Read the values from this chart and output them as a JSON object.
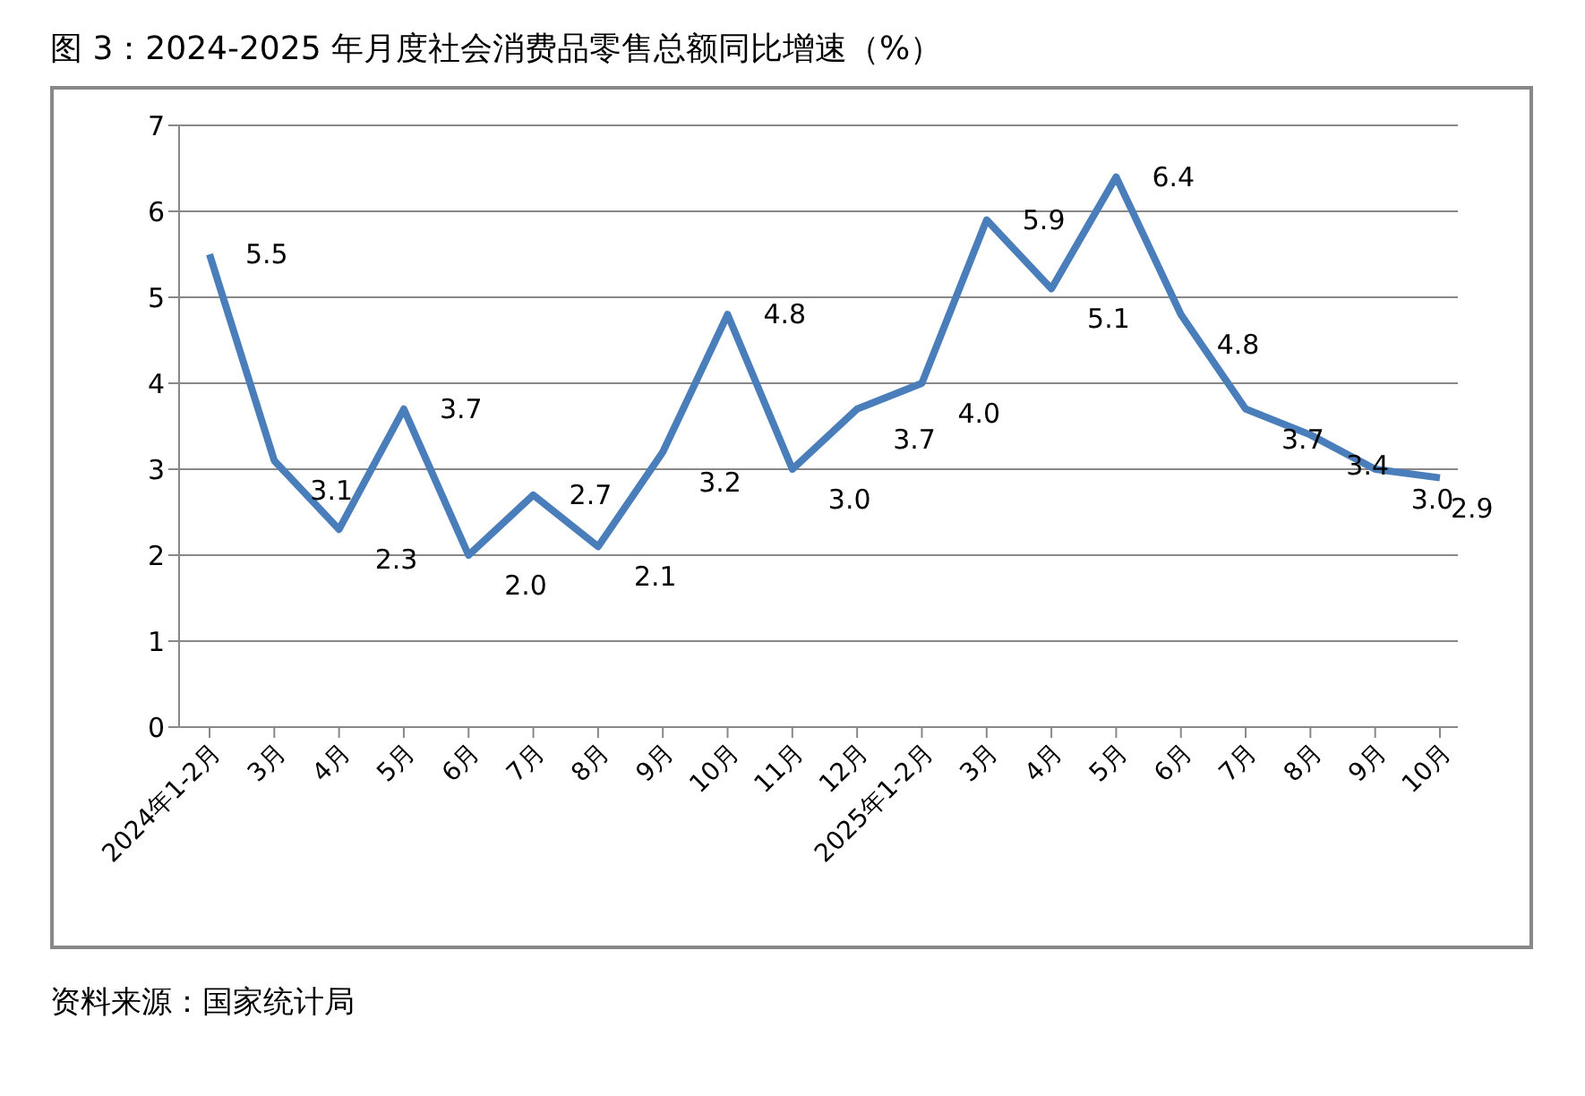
{
  "chart_data": {
    "type": "line",
    "title": "图 3：2024-2025 年月度社会消费品零售总额同比增速（%）",
    "categories": [
      "2024年1-2月",
      "3月",
      "4月",
      "5月",
      "6月",
      "7月",
      "8月",
      "9月",
      "10月",
      "11月",
      "12月",
      "2025年1-2月",
      "3月",
      "4月",
      "5月",
      "6月",
      "7月",
      "8月",
      "9月",
      "10月"
    ],
    "series": [
      {
        "color": "#4a7ebb",
        "values": [
          5.5,
          3.1,
          2.3,
          3.7,
          2.0,
          2.7,
          2.1,
          3.2,
          4.8,
          3.0,
          3.7,
          4.0,
          5.9,
          5.1,
          6.4,
          4.8,
          3.7,
          3.4,
          3.0,
          2.9
        ],
        "value_labels": [
          "5.5",
          "3.1",
          "2.3",
          "3.7",
          "2.0",
          "2.7",
          "2.1",
          "3.2",
          "4.8",
          "3.0",
          "3.7",
          "4.0",
          "5.9",
          "5.1",
          "6.4",
          "4.8",
          "3.7",
          "3.4",
          "3.0",
          "2.9"
        ]
      }
    ],
    "ylim": [
      0,
      7
    ],
    "yticks": [
      0,
      1,
      2,
      3,
      4,
      5,
      6,
      7
    ],
    "grid": "y",
    "legend": false,
    "marker": "none",
    "line_style": "solid",
    "annotations": [
      "资料来源：国家统计局"
    ]
  }
}
